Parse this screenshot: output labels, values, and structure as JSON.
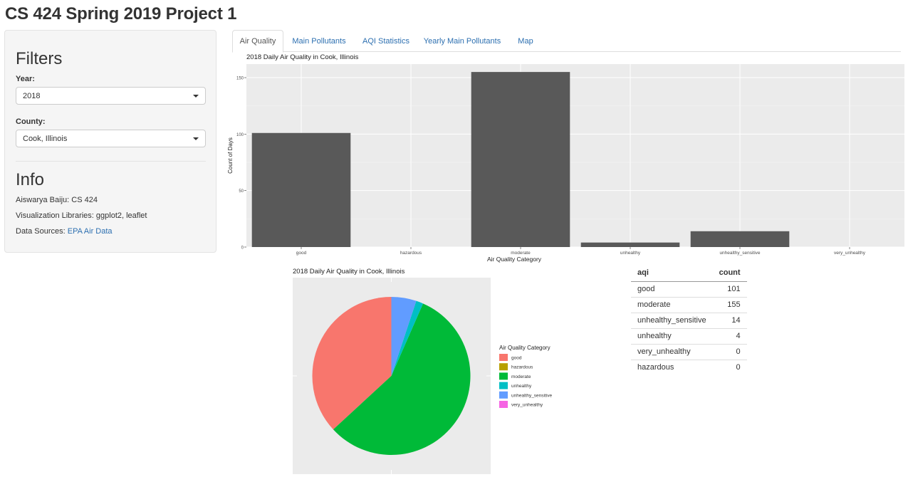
{
  "app": {
    "title": "CS 424 Spring 2019 Project 1"
  },
  "sidebar": {
    "filters_heading": "Filters",
    "year": {
      "label": "Year:",
      "value": "2018"
    },
    "county": {
      "label": "County:",
      "value": "Cook, Illinois"
    },
    "info_heading": "Info",
    "info_author": "Aiswarya Baiju: CS 424",
    "info_libraries": "Visualization Libraries: ggplot2, leaflet",
    "info_sources_prefix": "Data Sources: ",
    "info_sources_link": "EPA Air Data"
  },
  "tabs": [
    {
      "label": "Air Quality",
      "active": true
    },
    {
      "label": "Main Pollutants",
      "active": false
    },
    {
      "label": "AQI Statistics",
      "active": false
    },
    {
      "label": "Yearly Main Pollutants",
      "active": false
    },
    {
      "label": "Map",
      "active": false
    }
  ],
  "colors": {
    "panel_bg": "#ebebeb",
    "bar_fill": "#595959",
    "link": "#2c6fb0"
  },
  "chart_data": [
    {
      "type": "bar",
      "title": "2018 Daily Air Quality in Cook, Illinois",
      "xlabel": "Air Quality Category",
      "ylabel": "Count of Days",
      "categories": [
        "good",
        "hazardous",
        "moderate",
        "unhealthy",
        "unhealthy_sensitive",
        "very_unhealthy"
      ],
      "values": [
        101,
        0,
        155,
        4,
        14,
        0
      ],
      "yticks": [
        0,
        50,
        100,
        150
      ],
      "ylim": [
        0,
        162
      ],
      "grid": true
    },
    {
      "type": "pie",
      "title": "2018 Daily Air Quality in Cook, Illinois",
      "legend_title": "Air Quality Category",
      "legend_position": "right",
      "categories": [
        "good",
        "hazardous",
        "moderate",
        "unhealthy",
        "unhealthy_sensitive",
        "very_unhealthy"
      ],
      "values": [
        101,
        0,
        155,
        4,
        14,
        0
      ],
      "colors": [
        "#F8766D",
        "#B79F00",
        "#00BA38",
        "#00BFC4",
        "#619CFF",
        "#F564E3"
      ]
    }
  ],
  "table": {
    "headers": [
      "aqi",
      "count"
    ],
    "rows": [
      [
        "good",
        "101"
      ],
      [
        "moderate",
        "155"
      ],
      [
        "unhealthy_sensitive",
        "14"
      ],
      [
        "unhealthy",
        "4"
      ],
      [
        "very_unhealthy",
        "0"
      ],
      [
        "hazardous",
        "0"
      ]
    ]
  }
}
